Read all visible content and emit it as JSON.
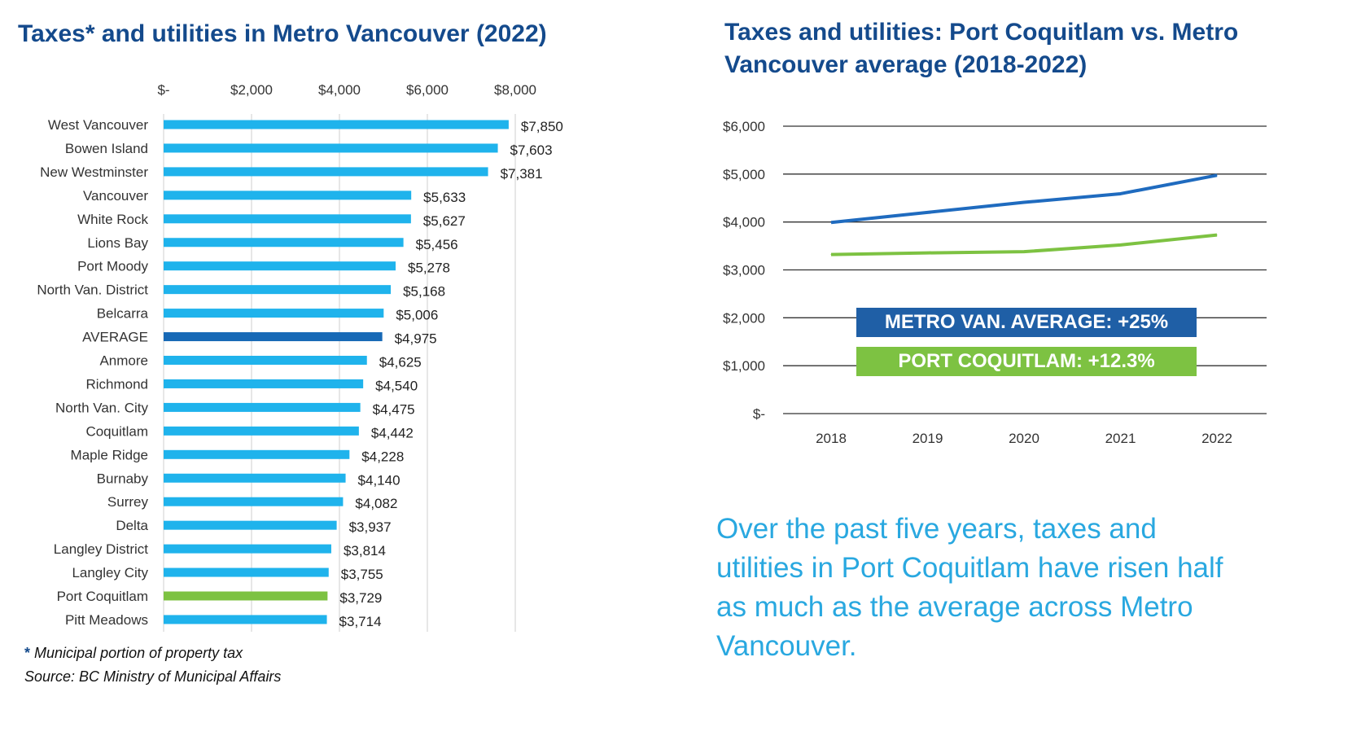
{
  "bar_chart_title": "Taxes* and utilities in Metro Vancouver (2022)",
  "line_chart_title": "Taxes and utilities: Port Coquitlam vs. Metro Vancouver average (2018-2022)",
  "footnote": {
    "star": "*",
    "text": "Municipal portion of property tax",
    "source": "Source: BC Ministry of Municipal Affairs"
  },
  "badges": {
    "metro": "METRO VAN. AVERAGE: +25%",
    "poco": "PORT COQUITLAM: +12.3%"
  },
  "takeaway": "Over the past five years, taxes and utilities in Port Coquitlam have risen half as much as the average across Metro Vancouver.",
  "colors": {
    "bar": "#1fb3ec",
    "average_bar": "#1769b6",
    "poco_bar": "#7dc242",
    "metro_line": "#1f6bbf",
    "poco_line": "#7dc242",
    "grid": "#cfcfcf",
    "line_grid": "#333333"
  },
  "chart_data": [
    {
      "type": "bar",
      "orientation": "horizontal",
      "title": "Taxes* and utilities in Metro Vancouver (2022)",
      "categories": [
        "West Vancouver",
        "Bowen Island",
        "New Westminster",
        "Vancouver",
        "White Rock",
        "Lions Bay",
        "Port Moody",
        "North Van. District",
        "Belcarra",
        "AVERAGE",
        "Anmore",
        "Richmond",
        "North Van. City",
        "Coquitlam",
        "Maple Ridge",
        "Burnaby",
        "Surrey",
        "Delta",
        "Langley District",
        "Langley City",
        "Port Coquitlam",
        "Pitt Meadows"
      ],
      "values": [
        7850,
        7603,
        7381,
        5633,
        5627,
        5456,
        5278,
        5168,
        5006,
        4975,
        4625,
        4540,
        4475,
        4442,
        4228,
        4140,
        4082,
        3937,
        3814,
        3755,
        3729,
        3714
      ],
      "value_labels": [
        "$7,850",
        "$7,603",
        "$7,381",
        "$5,633",
        "$5,627",
        "$5,456",
        "$5,278",
        "$5,168",
        "$5,006",
        "$4,975",
        "$4,625",
        "$4,540",
        "$4,475",
        "$4,442",
        "$4,228",
        "$4,140",
        "$4,082",
        "$3,937",
        "$3,814",
        "$3,755",
        "$3,729",
        "$3,714"
      ],
      "highlight": {
        "AVERAGE": "average",
        "Port Coquitlam": "poco"
      },
      "xlim": [
        0,
        8000
      ],
      "x_ticks": [
        0,
        2000,
        4000,
        6000,
        8000
      ],
      "x_tick_labels": [
        "$-",
        "$2,000",
        "$4,000",
        "$6,000",
        "$8,000"
      ],
      "axis_position": "top",
      "grid": true
    },
    {
      "type": "line",
      "title": "Taxes and utilities: Port Coquitlam vs. Metro Vancouver average (2018-2022)",
      "x": [
        "2018",
        "2019",
        "2020",
        "2021",
        "2022"
      ],
      "series": [
        {
          "name": "Metro Vancouver average",
          "values": [
            3990,
            4200,
            4410,
            4590,
            4975
          ],
          "color_key": "metro_line"
        },
        {
          "name": "Port Coquitlam",
          "values": [
            3320,
            3355,
            3380,
            3520,
            3729
          ],
          "color_key": "poco_line"
        }
      ],
      "ylim": [
        0,
        6000
      ],
      "y_ticks": [
        0,
        1000,
        2000,
        3000,
        4000,
        5000,
        6000
      ],
      "y_tick_labels": [
        "$-",
        "$1,000",
        "$2,000",
        "$3,000",
        "$4,000",
        "$5,000",
        "$6,000"
      ],
      "grid": true
    }
  ]
}
